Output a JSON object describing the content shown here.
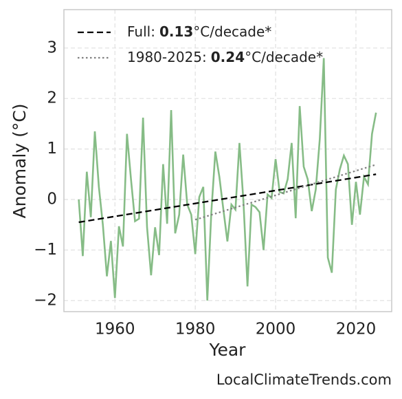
{
  "chart_data": {
    "type": "line",
    "xlabel": "Year",
    "ylabel": "Anomaly (°C)",
    "source": "LocalClimateTrends.com",
    "xlim": [
      1947.3,
      2028.9
    ],
    "ylim": [
      -2.22,
      3.76
    ],
    "xticks": [
      1960,
      1980,
      2000,
      2020
    ],
    "yticks": [
      {
        "value": -2,
        "label": "−2"
      },
      {
        "value": -1,
        "label": "−1"
      },
      0,
      1,
      2,
      3
    ],
    "grid": true,
    "legend": "upper left",
    "series": [
      {
        "color": "#86bc86",
        "style": "solid",
        "x": [
          1951,
          1952,
          1953,
          1954,
          1955,
          1956,
          1957,
          1958,
          1959,
          1960,
          1961,
          1962,
          1963,
          1964,
          1965,
          1966,
          1967,
          1968,
          1969,
          1970,
          1971,
          1972,
          1973,
          1974,
          1975,
          1976,
          1977,
          1978,
          1979,
          1980,
          1981,
          1982,
          1983,
          1984,
          1985,
          1986,
          1987,
          1988,
          1989,
          1990,
          1991,
          1992,
          1993,
          1994,
          1995,
          1996,
          1997,
          1998,
          1999,
          2000,
          2001,
          2002,
          2003,
          2004,
          2005,
          2006,
          2007,
          2008,
          2009,
          2010,
          2011,
          2012,
          2013,
          2014,
          2015,
          2016,
          2017,
          2018,
          2019,
          2020,
          2021,
          2022,
          2023,
          2024,
          2025
        ],
        "values": [
          0.0,
          -1.12,
          0.55,
          -0.35,
          1.35,
          0.25,
          -0.5,
          -1.52,
          -0.82,
          -1.95,
          -0.53,
          -0.93,
          1.3,
          0.4,
          -0.43,
          -0.38,
          1.62,
          -0.55,
          -1.5,
          -0.55,
          -1.1,
          0.7,
          -0.48,
          1.77,
          -0.67,
          -0.3,
          0.89,
          -0.1,
          -0.3,
          -1.08,
          0.05,
          0.25,
          -2.0,
          -0.25,
          0.95,
          0.45,
          -0.2,
          -0.83,
          -0.1,
          -0.2,
          1.12,
          -0.05,
          -1.72,
          -0.1,
          -0.15,
          -0.25,
          -1.0,
          0.1,
          0.03,
          0.8,
          0.15,
          0.12,
          0.4,
          1.12,
          -0.37,
          1.85,
          0.65,
          0.4,
          -0.23,
          0.2,
          1.2,
          2.8,
          -1.15,
          -1.45,
          0.2,
          0.6,
          0.87,
          0.7,
          -0.5,
          0.35,
          -0.3,
          0.45,
          0.3,
          1.3,
          1.72
        ]
      },
      {
        "name": "Full:",
        "rate": 0.13,
        "unit": "°C/decade*",
        "color": "#000000",
        "style": "dashed",
        "x": [
          1951,
          2025
        ],
        "values": [
          -0.45,
          0.5
        ]
      },
      {
        "name": "1980-2025:",
        "rate": 0.24,
        "unit": "°C/decade*",
        "color": "#808080",
        "style": "dotted",
        "x": [
          1980,
          2025
        ],
        "values": [
          -0.4,
          0.69
        ]
      }
    ]
  }
}
